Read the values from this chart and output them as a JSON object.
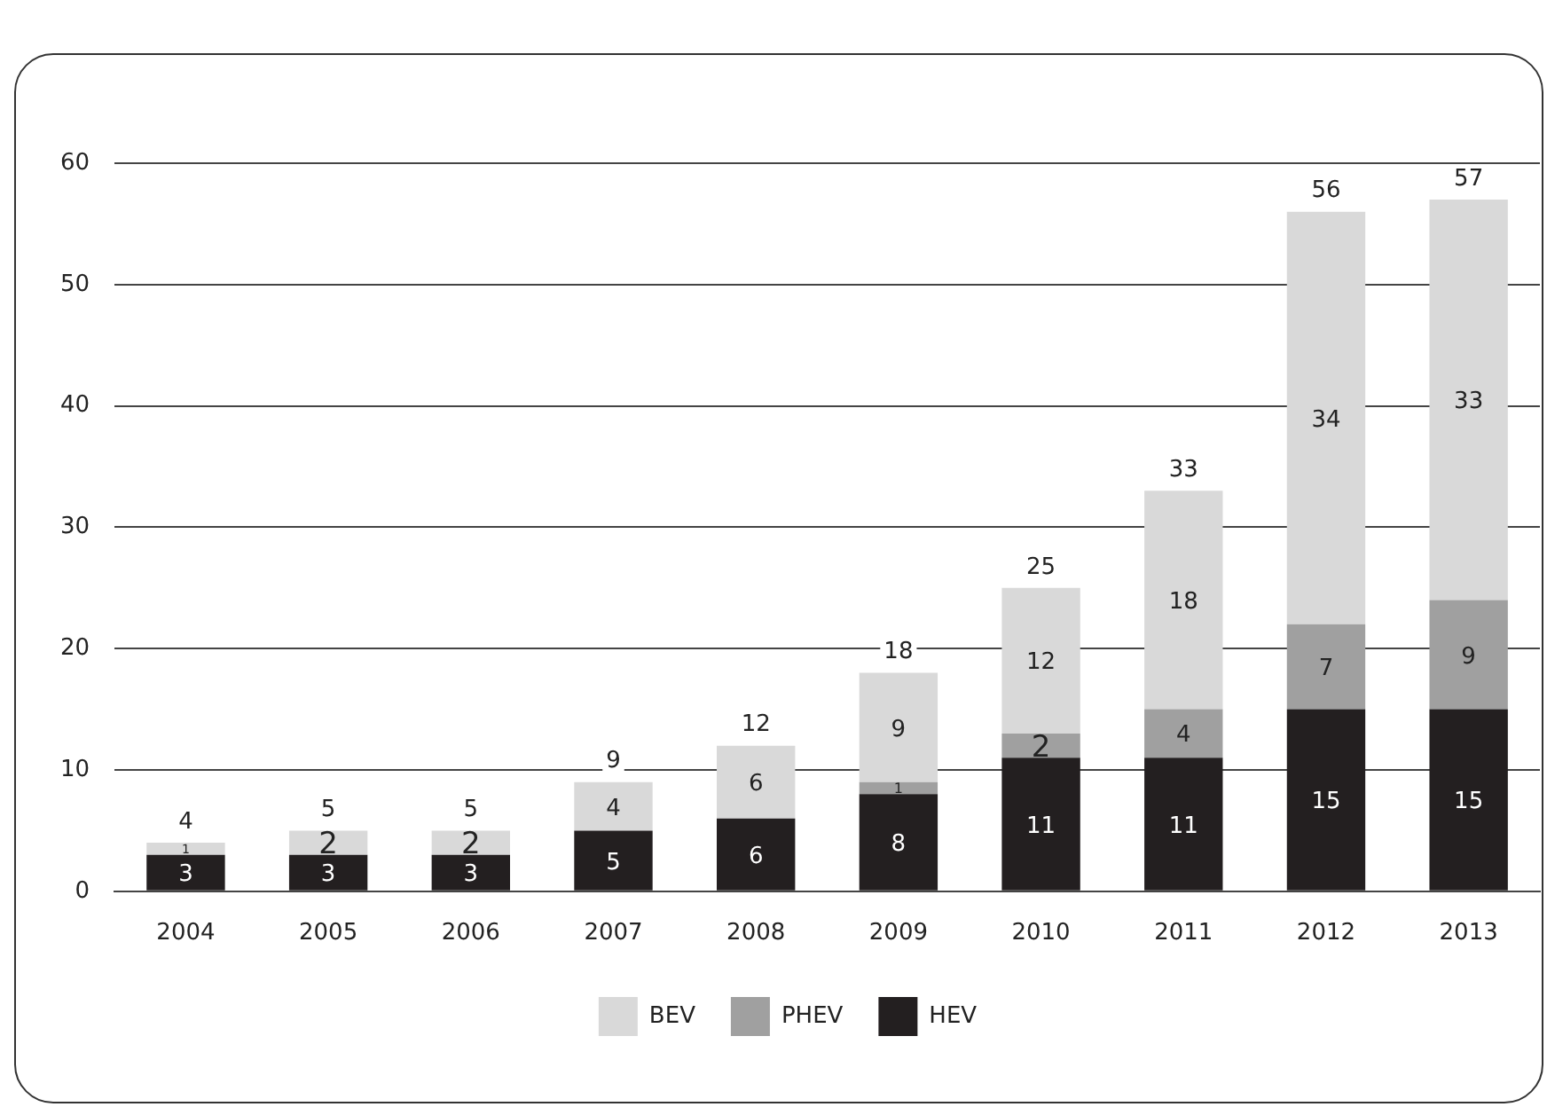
{
  "chart_data": {
    "type": "bar",
    "stacked": true,
    "categories": [
      "2004",
      "2005",
      "2006",
      "2007",
      "2008",
      "2009",
      "2010",
      "2011",
      "2012",
      "2013"
    ],
    "series": [
      {
        "name": "HEV",
        "color": "#231f20",
        "values": [
          3,
          3,
          3,
          5,
          6,
          8,
          11,
          11,
          15,
          15
        ],
        "value_labels": [
          "3",
          "3",
          "3",
          "5",
          "6",
          "8",
          "11",
          "11",
          "15",
          "15"
        ]
      },
      {
        "name": "PHEV",
        "color": "#a0a0a0",
        "values": [
          0,
          0,
          0,
          0,
          0,
          1,
          2,
          4,
          7,
          9
        ],
        "value_labels": [
          null,
          null,
          null,
          null,
          null,
          "1",
          "2",
          "4",
          "7",
          "9"
        ]
      },
      {
        "name": "BEV",
        "color": "#d9d9d9",
        "values": [
          1,
          2,
          2,
          4,
          6,
          9,
          12,
          18,
          34,
          33
        ],
        "value_labels": [
          "1",
          "2",
          "2",
          "4",
          "6",
          "9",
          "12",
          "18",
          "34",
          "33"
        ]
      }
    ],
    "totals": [
      "4",
      "5",
      "5",
      "9",
      "12",
      "18",
      "25",
      "33",
      "56",
      "57"
    ],
    "ylim": [
      0,
      60
    ],
    "yticks": [
      0,
      10,
      20,
      30,
      40,
      50,
      60
    ],
    "grid": "y",
    "legend": "bottom"
  }
}
